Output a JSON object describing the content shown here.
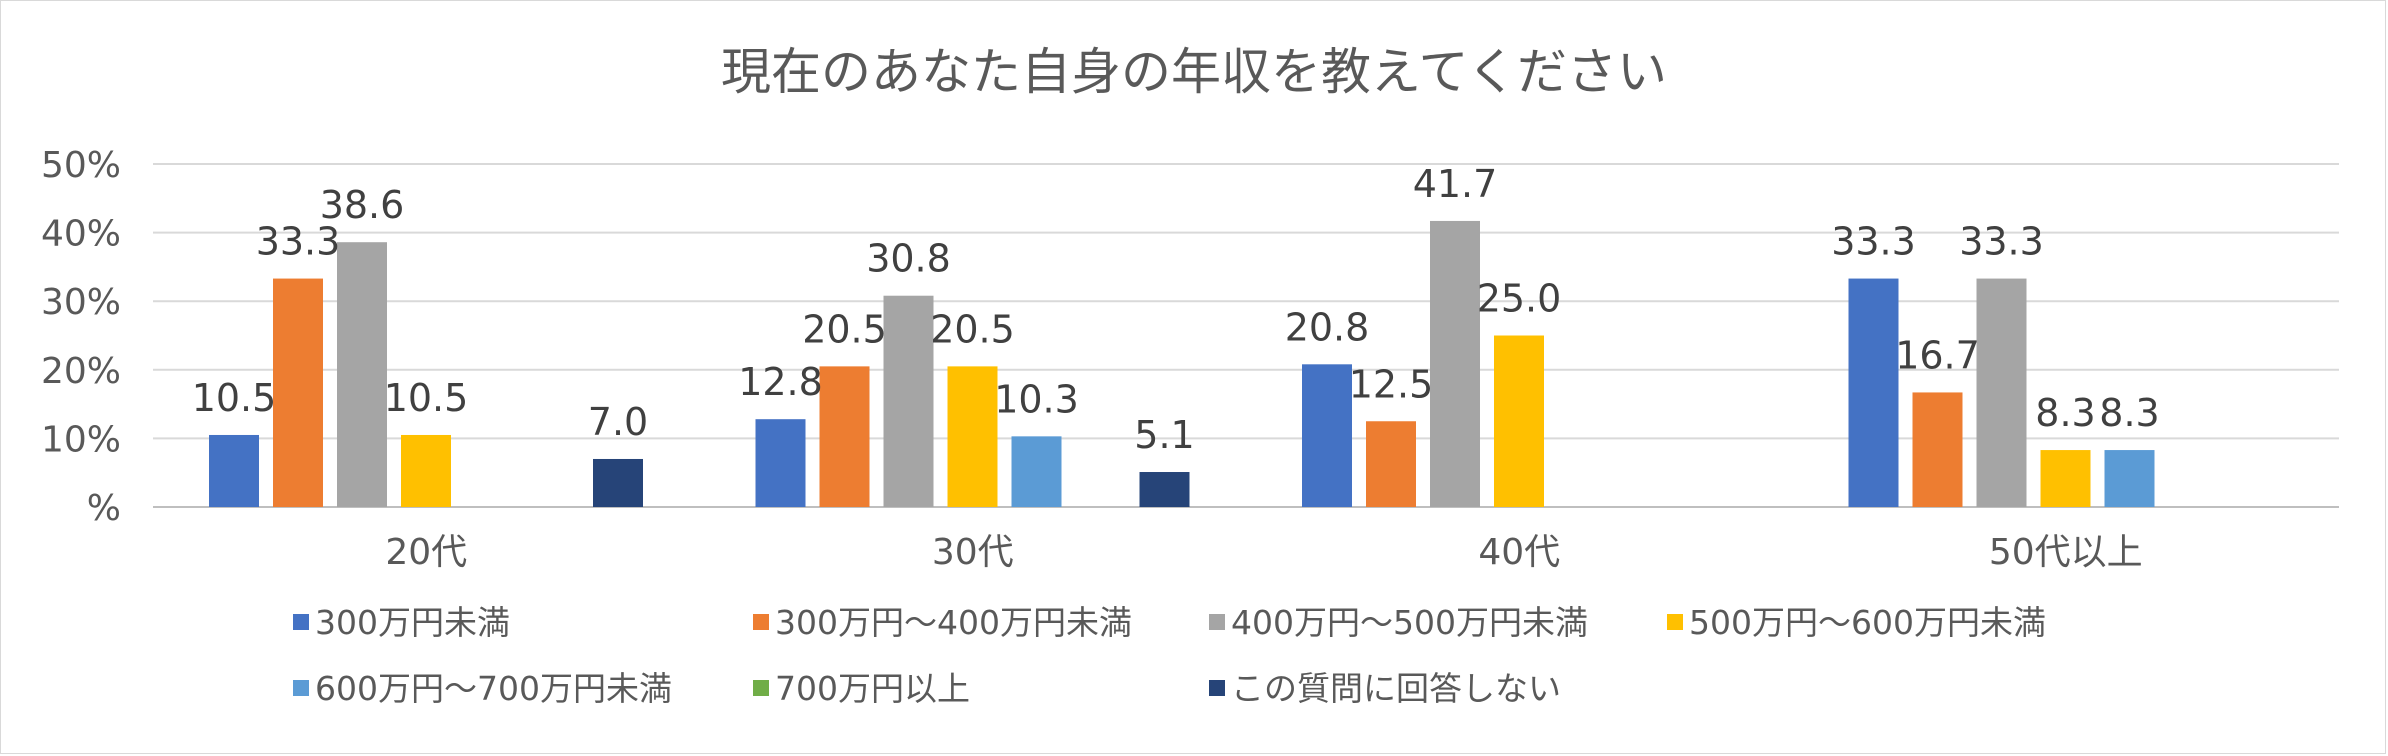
{
  "chart_data": {
    "type": "bar",
    "title": "現在のあなた自身の年収を教えてください",
    "xlabel": "",
    "ylabel": "",
    "ylim": [
      0,
      50
    ],
    "yticks": [
      "%",
      "10%",
      "20%",
      "30%",
      "40%",
      "50%"
    ],
    "grid": true,
    "legend_position": "bottom",
    "categories": [
      "20代",
      "30代",
      "40代",
      "50代以上"
    ],
    "series": [
      {
        "name": "300万円未満",
        "color": "#4472C4",
        "values": [
          10.5,
          12.8,
          20.8,
          33.3
        ],
        "labels": [
          "10.5",
          "12.8",
          "20.8",
          "33.3"
        ]
      },
      {
        "name": "300万円～400万円未満",
        "color": "#ED7D31",
        "values": [
          33.3,
          20.5,
          12.5,
          16.7
        ],
        "labels": [
          "33.3",
          "20.5",
          "12.5",
          "16.7"
        ]
      },
      {
        "name": "400万円～500万円未満",
        "color": "#A5A5A5",
        "values": [
          38.6,
          30.8,
          41.7,
          33.3
        ],
        "labels": [
          "38.6",
          "30.8",
          "41.7",
          "33.3"
        ]
      },
      {
        "name": "500万円～600万円未満",
        "color": "#FFC000",
        "values": [
          10.5,
          20.5,
          25.0,
          8.3
        ],
        "labels": [
          "10.5",
          "20.5",
          "25.0",
          "8.3"
        ]
      },
      {
        "name": "600万円～700万円未満",
        "color": "#5B9BD5",
        "values": [
          null,
          10.3,
          null,
          8.3
        ],
        "labels": [
          "",
          "10.3",
          "",
          "8.3"
        ]
      },
      {
        "name": "700万円以上",
        "color": "#70AD47",
        "values": [
          null,
          null,
          null,
          null
        ],
        "labels": [
          "",
          "",
          "",
          ""
        ]
      },
      {
        "name": "この質問に回答しない",
        "color": "#264478",
        "values": [
          7.0,
          5.1,
          null,
          null
        ],
        "labels": [
          "7.0",
          "5.1",
          "",
          ""
        ]
      }
    ]
  }
}
